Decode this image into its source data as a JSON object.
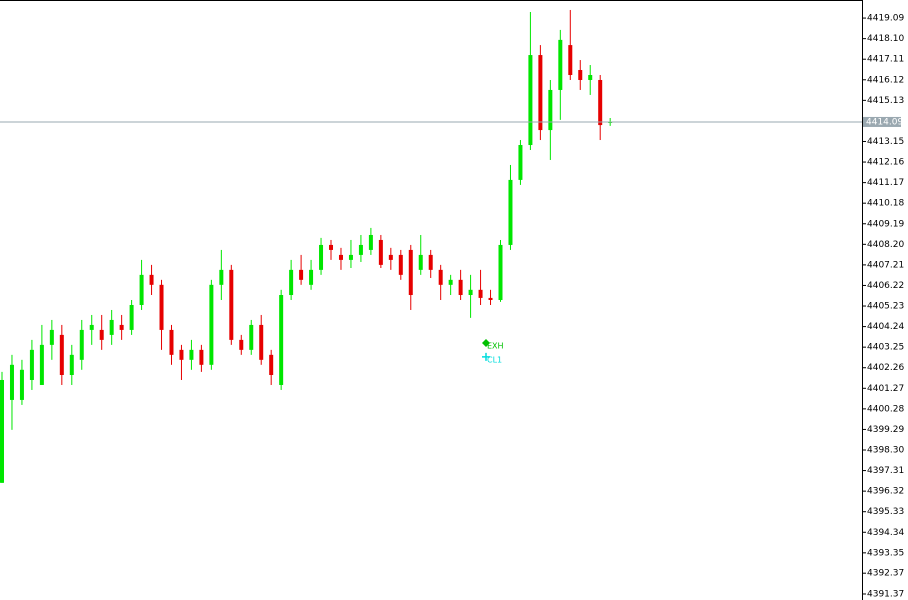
{
  "chart_data": {
    "type": "candlestick",
    "up_color": "#00e600",
    "down_color": "#e60000",
    "ylim": [
      4391.08,
      4419.96
    ],
    "yticks": [
      4419.09,
      {
        "value": 4418.1,
        "label": "4418.10"
      },
      4417.11,
      4416.12,
      4415.13,
      4413.15,
      4412.16,
      4411.17,
      4410.18,
      4409.19,
      {
        "value": 4408.2,
        "label": "4408.20"
      },
      4407.21,
      4406.22,
      4405.23,
      4404.24,
      4403.25,
      4402.26,
      4401.27,
      4400.28,
      4399.29,
      {
        "value": 4398.3,
        "label": "4398.30"
      },
      4397.31,
      4396.32,
      4395.33,
      4394.34,
      4393.35,
      4392.37,
      4391.37
    ],
    "current_price": 4414.09,
    "current_price_color": "#9aa8b0",
    "open": [
      4396.72,
      4400.71,
      4400.71,
      4401.67,
      4401.43,
      4403.36,
      4403.84,
      4401.91,
      4402.64,
      4404.08,
      4404.08,
      4403.84,
      4404.32,
      4404.08,
      4405.28,
      4406.73,
      4406.25,
      4404.08,
      4403.12,
      4402.64,
      4403.12,
      4402.4,
      4406.25,
      4406.97,
      4403.6,
      4403.12,
      4404.32,
      4402.88,
      4401.43,
      4405.76,
      4406.97,
      4406.25,
      4406.97,
      4408.17,
      4407.69,
      4407.45,
      4407.69,
      4407.93,
      4408.41,
      4407.69,
      4407.69,
      4407.93,
      4406.97,
      4407.69,
      4406.97,
      4406.25,
      4406.49,
      4405.76,
      4406.01,
      4405.62,
      4405.52,
      4408.17,
      4411.3,
      4412.98,
      4417.31,
      4413.7,
      4415.63,
      4417.79,
      4416.59,
      4416.11,
      4416.11,
      4414.09
    ],
    "high": [
      4402.06,
      4402.88,
      4402.64,
      4403.6,
      4404.32,
      4404.56,
      4404.32,
      4403.36,
      4404.56,
      4404.8,
      4404.8,
      4405.04,
      4404.8,
      4405.52,
      4407.45,
      4407.21,
      4406.49,
      4404.32,
      4403.36,
      4403.6,
      4403.36,
      4406.49,
      4407.93,
      4407.21,
      4403.84,
      4404.56,
      4404.8,
      4403.12,
      4406.01,
      4407.45,
      4407.69,
      4407.45,
      4408.51,
      4408.41,
      4408.03,
      4408.41,
      4408.65,
      4408.99,
      4408.65,
      4408.03,
      4407.93,
      4408.17,
      4408.65,
      4407.93,
      4407.21,
      4406.73,
      4406.97,
      4406.73,
      4406.97,
      4406.01,
      4408.41,
      4412.02,
      4413.22,
      4419.38,
      4417.79,
      4416.11,
      4418.52,
      4419.48,
      4417.07,
      4416.83,
      4416.35,
      4414.28
    ],
    "low": [
      4396.72,
      4399.27,
      4400.47,
      4401.19,
      4401.43,
      4402.64,
      4401.43,
      4401.43,
      4402.16,
      4403.36,
      4403.12,
      4403.36,
      4403.6,
      4403.84,
      4405.04,
      4405.76,
      4403.12,
      4402.4,
      4401.67,
      4402.16,
      4402.06,
      4402.16,
      4405.52,
      4403.36,
      4402.88,
      4402.88,
      4402.4,
      4401.43,
      4401.19,
      4405.52,
      4406.25,
      4406.01,
      4406.73,
      4407.45,
      4406.97,
      4407.06,
      4407.35,
      4407.69,
      4407.06,
      4406.97,
      4406.49,
      4405.04,
      4406.73,
      4406.58,
      4405.52,
      4405.76,
      4405.52,
      4404.66,
      4405.28,
      4405.28,
      4405.43,
      4407.93,
      4411.06,
      4412.74,
      4413.22,
      4412.26,
      4414.19,
      4416.11,
      4415.63,
      4415.39,
      4413.22,
      4413.9
    ],
    "close": [
      4401.67,
      4402.4,
      4402.16,
      4403.12,
      4403.36,
      4404.08,
      4401.91,
      4402.88,
      4404.08,
      4404.32,
      4403.6,
      4404.56,
      4404.08,
      4405.28,
      4406.73,
      4406.25,
      4404.08,
      4402.88,
      4402.64,
      4403.12,
      4402.4,
      4406.25,
      4406.97,
      4403.6,
      4403.12,
      4404.32,
      4402.64,
      4401.91,
      4405.76,
      4406.97,
      4406.49,
      4406.97,
      4408.17,
      4407.93,
      4407.45,
      4407.69,
      4408.17,
      4408.65,
      4407.21,
      4407.45,
      4406.73,
      4405.76,
      4407.69,
      4406.97,
      4406.25,
      4406.49,
      4405.76,
      4406.01,
      4405.62,
      4405.52,
      4408.17,
      4411.3,
      4412.98,
      4417.31,
      4413.7,
      4415.63,
      4418.04,
      4416.35,
      4416.11,
      4416.35,
      4413.94,
      4414.09
    ],
    "markers": [
      {
        "label": "EXH",
        "value": 4403.45,
        "color": "#00c000"
      },
      {
        "label": "CL1",
        "value": 4402.78,
        "color": "#00dcdc"
      }
    ]
  }
}
